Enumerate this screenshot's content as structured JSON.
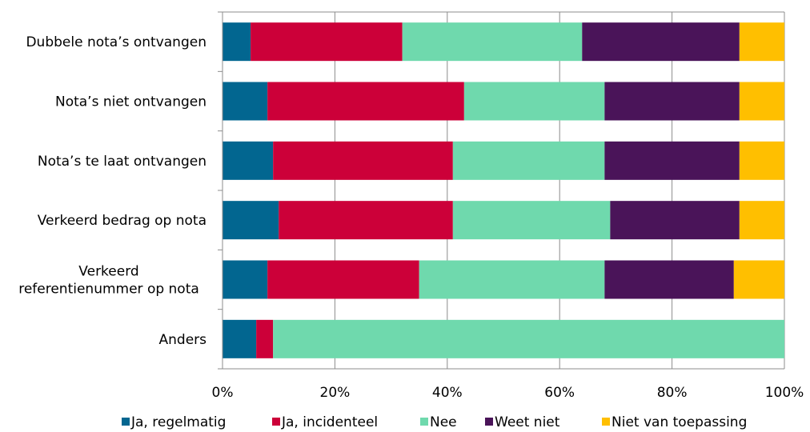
{
  "chart_data": {
    "type": "bar",
    "orientation": "horizontal",
    "stacked": "percent",
    "categories": [
      [
        "Dubbele nota’s ontvangen"
      ],
      [
        "Nota’s niet ontvangen"
      ],
      [
        "Nota’s te laat ontvangen"
      ],
      [
        "Verkeerd bedrag op nota"
      ],
      [
        "Verkeerd",
        "referentienummer op nota"
      ],
      [
        "Anders"
      ]
    ],
    "series": [
      {
        "name": "Ja, regelmatig",
        "color": "#026690",
        "values": [
          5,
          8,
          9,
          10,
          8,
          6
        ]
      },
      {
        "name": "Ja, incidenteel",
        "color": "#cc0039",
        "values": [
          27,
          35,
          32,
          31,
          27,
          3
        ]
      },
      {
        "name": "Nee",
        "color": "#6fd9ad",
        "values": [
          32,
          25,
          27,
          28,
          33,
          91
        ]
      },
      {
        "name": "Weet niet",
        "color": "#4a1459",
        "values": [
          28,
          24,
          24,
          23,
          23,
          0
        ]
      },
      {
        "name": "Niet van toepassing",
        "color": "#ffbf00",
        "values": [
          8,
          8,
          8,
          8,
          9,
          0
        ]
      }
    ],
    "xlim": [
      0,
      100
    ],
    "x_ticks": [
      "0%",
      "20%",
      "40%",
      "60%",
      "80%",
      "100%"
    ],
    "grid": true,
    "legend_position": "bottom"
  }
}
